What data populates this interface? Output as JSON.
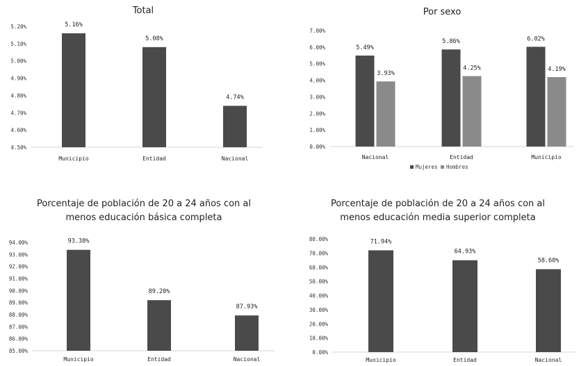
{
  "chart_data": [
    {
      "type": "bar",
      "title": "Total",
      "categories": [
        "Municipio",
        "Entidad",
        "Nacional"
      ],
      "values": [
        5.16,
        5.08,
        4.74
      ],
      "data_labels": [
        "5.16%",
        "5.08%",
        "4.74%"
      ],
      "ylim": [
        4.5,
        5.2
      ],
      "yticks": [
        "5.20%",
        "5.10%",
        "5.00%",
        "4.90%",
        "4.80%",
        "4.70%",
        "4.60%",
        "4.50%"
      ],
      "grid": false,
      "color": "#4a4a4a"
    },
    {
      "type": "bar",
      "title": "Por sexo",
      "categories": [
        "Nacional",
        "Entidad",
        "Municipio"
      ],
      "series": [
        {
          "name": "Mujeres",
          "values": [
            5.49,
            5.86,
            6.02
          ],
          "labels": [
            "5.49%",
            "5.86%",
            "6.02%"
          ],
          "color": "#4a4a4a"
        },
        {
          "name": "Hombres",
          "values": [
            3.93,
            4.25,
            4.19
          ],
          "labels": [
            "3.93%",
            "4.25%",
            "4.19%"
          ],
          "color": "#8a8a8a"
        }
      ],
      "ylim": [
        0,
        7
      ],
      "yticks": [
        "7.00%",
        "6.00%",
        "5.00%",
        "4.00%",
        "3.00%",
        "2.00%",
        "1.00%",
        "0.00%"
      ],
      "legend": "bottom",
      "grid": false
    },
    {
      "type": "bar",
      "title": "Porcentaje de población de 20 a 24 años con al menos educación básica completa",
      "title_lines": [
        "Porcentaje de población de 20 a 24 años con al",
        "menos educación básica completa"
      ],
      "categories": [
        "Municipio",
        "Entidad",
        "Nacional"
      ],
      "values": [
        93.38,
        89.2,
        87.93
      ],
      "data_labels": [
        "93.38%",
        "89.20%",
        "87.93%"
      ],
      "ylim": [
        85,
        94
      ],
      "yticks": [
        "94.00%",
        "93.00%",
        "92.00%",
        "91.00%",
        "90.00%",
        "89.00%",
        "88.00%",
        "87.00%",
        "86.00%",
        "85.00%"
      ],
      "grid": false,
      "color": "#4a4a4a"
    },
    {
      "type": "bar",
      "title": "Porcentaje de población de 20 a 24 años con al menos educación media superior completa",
      "title_lines": [
        "Porcentaje de población de 20 a 24 años con al",
        "menos educación media superior completa"
      ],
      "categories": [
        "Municipio",
        "Entidad",
        "Nacional"
      ],
      "values": [
        71.94,
        64.93,
        58.6
      ],
      "data_labels": [
        "71.94%",
        "64.93%",
        "58.60%"
      ],
      "ylim": [
        0,
        80
      ],
      "yticks": [
        "80.00%",
        "70.00%",
        "60.00%",
        "50.00%",
        "40.00%",
        "30.00%",
        "20.00%",
        "10.00%",
        "0.00%"
      ],
      "grid": false,
      "color": "#4a4a4a"
    }
  ]
}
